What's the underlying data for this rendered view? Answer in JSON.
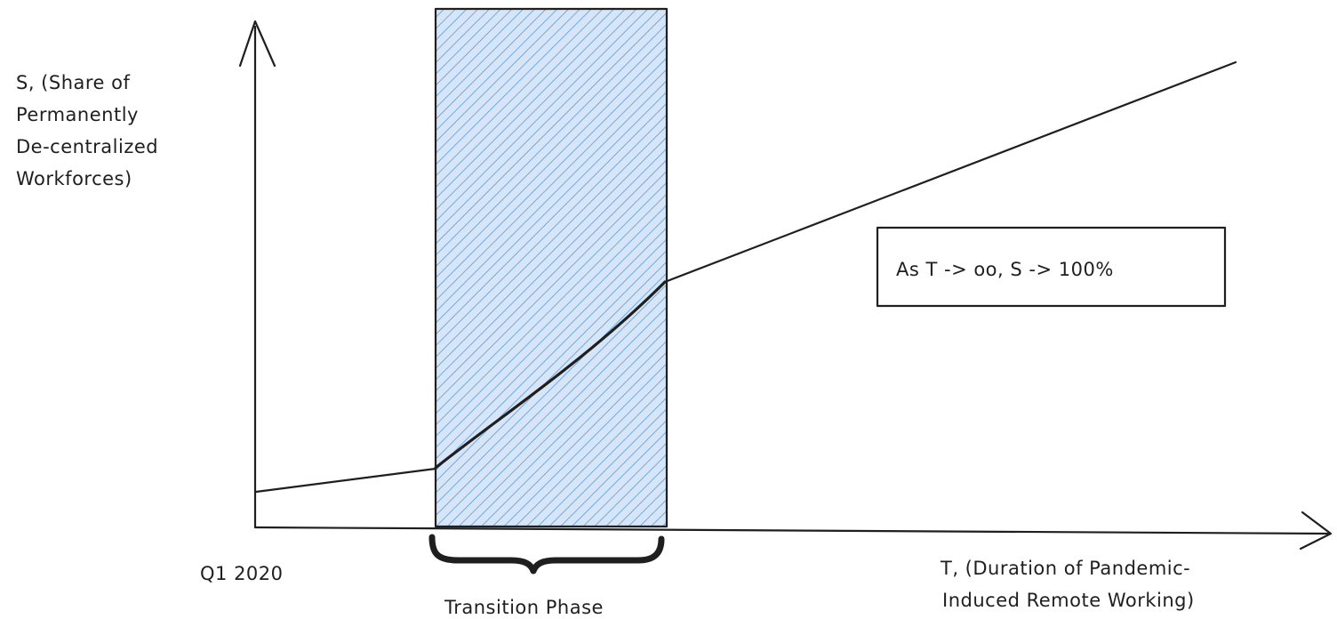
{
  "diagram": {
    "y_axis_label": [
      "S, (Share of",
      "Permanently",
      "De-centralized",
      "Workforces)"
    ],
    "x_axis_label": [
      "T, (Duration of Pandemic-",
      "Induced Remote Working)"
    ],
    "origin_label": "Q1 2020",
    "region_label": "Transition Phase",
    "callout_text": "As T -> oo, S -> 100%",
    "region_fill_color": "#d6e6f8",
    "region_hatch_color": "#5b9bd5",
    "ink_color": "#1f1f1f"
  }
}
